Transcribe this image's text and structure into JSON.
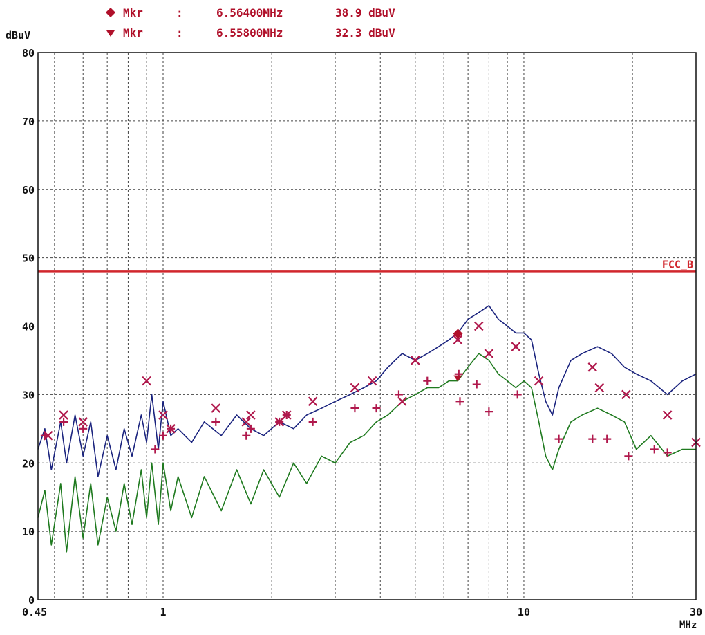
{
  "markers": [
    {
      "symbol": "diamond",
      "label": "Mkr",
      "sep": ":",
      "freq": "6.56400MHz",
      "level": "38.9 dBuV"
    },
    {
      "symbol": "triangle-down",
      "label": "Mkr",
      "sep": ":",
      "freq": "6.55800MHz",
      "level": "32.3 dBuV"
    }
  ],
  "colors": {
    "text": "#b0102a",
    "axis_text": "#111111",
    "grid": "#444444",
    "limit": "#d1262c",
    "peak": "#1a237e",
    "average": "#1f7a1f",
    "marker_x": "#b0184c",
    "marker_plus": "#b0184c"
  },
  "chart_data": {
    "type": "line",
    "xscale": "log",
    "xlim": [
      0.45,
      30
    ],
    "ylim": [
      0,
      80
    ],
    "ylabel": "dBuV",
    "xunit": "MHz",
    "x_tick_labels": [
      {
        "v": 0.45,
        "t": "0.45"
      },
      {
        "v": 1,
        "t": "1"
      },
      {
        "v": 10,
        "t": "10"
      },
      {
        "v": 30,
        "t": "30"
      }
    ],
    "y_tick_labels": [
      "0",
      "10",
      "20",
      "30",
      "40",
      "50",
      "60",
      "70",
      "80"
    ],
    "grid": true,
    "limit_line": {
      "name": "FCC_B",
      "value": 48
    },
    "series": [
      {
        "key": "peak",
        "points": [
          [
            0.45,
            22
          ],
          [
            0.47,
            25
          ],
          [
            0.49,
            19
          ],
          [
            0.52,
            26
          ],
          [
            0.54,
            20
          ],
          [
            0.57,
            27
          ],
          [
            0.6,
            21
          ],
          [
            0.63,
            26
          ],
          [
            0.66,
            18
          ],
          [
            0.7,
            24
          ],
          [
            0.74,
            19
          ],
          [
            0.78,
            25
          ],
          [
            0.82,
            21
          ],
          [
            0.87,
            27
          ],
          [
            0.9,
            23
          ],
          [
            0.93,
            30
          ],
          [
            0.97,
            22
          ],
          [
            1.0,
            29
          ],
          [
            1.05,
            24
          ],
          [
            1.1,
            25
          ],
          [
            1.2,
            23
          ],
          [
            1.3,
            26
          ],
          [
            1.45,
            24
          ],
          [
            1.6,
            27
          ],
          [
            1.75,
            25
          ],
          [
            1.9,
            24
          ],
          [
            2.1,
            26
          ],
          [
            2.3,
            25
          ],
          [
            2.5,
            27
          ],
          [
            2.75,
            28
          ],
          [
            3.0,
            29
          ],
          [
            3.3,
            30
          ],
          [
            3.6,
            31
          ],
          [
            3.9,
            32
          ],
          [
            4.2,
            34
          ],
          [
            4.6,
            36
          ],
          [
            5.0,
            35
          ],
          [
            5.4,
            36
          ],
          [
            5.8,
            37
          ],
          [
            6.2,
            38
          ],
          [
            6.56,
            39
          ],
          [
            7.0,
            41
          ],
          [
            7.5,
            42
          ],
          [
            8.0,
            43
          ],
          [
            8.5,
            41
          ],
          [
            9.0,
            40
          ],
          [
            9.5,
            39
          ],
          [
            10.0,
            39
          ],
          [
            10.5,
            38
          ],
          [
            11.0,
            33
          ],
          [
            11.5,
            29
          ],
          [
            12.0,
            27
          ],
          [
            12.5,
            31
          ],
          [
            13.5,
            35
          ],
          [
            14.5,
            36
          ],
          [
            16.0,
            37
          ],
          [
            17.5,
            36
          ],
          [
            19.0,
            34
          ],
          [
            20.5,
            33
          ],
          [
            22.5,
            32
          ],
          [
            25.0,
            30
          ],
          [
            27.5,
            32
          ],
          [
            30.0,
            33
          ]
        ]
      },
      {
        "key": "average",
        "points": [
          [
            0.45,
            12
          ],
          [
            0.47,
            16
          ],
          [
            0.49,
            8
          ],
          [
            0.52,
            17
          ],
          [
            0.54,
            7
          ],
          [
            0.57,
            18
          ],
          [
            0.6,
            9
          ],
          [
            0.63,
            17
          ],
          [
            0.66,
            8
          ],
          [
            0.7,
            15
          ],
          [
            0.74,
            10
          ],
          [
            0.78,
            17
          ],
          [
            0.82,
            11
          ],
          [
            0.87,
            19
          ],
          [
            0.9,
            12
          ],
          [
            0.93,
            20
          ],
          [
            0.97,
            11
          ],
          [
            1.0,
            20
          ],
          [
            1.05,
            13
          ],
          [
            1.1,
            18
          ],
          [
            1.2,
            12
          ],
          [
            1.3,
            18
          ],
          [
            1.45,
            13
          ],
          [
            1.6,
            19
          ],
          [
            1.75,
            14
          ],
          [
            1.9,
            19
          ],
          [
            2.1,
            15
          ],
          [
            2.3,
            20
          ],
          [
            2.5,
            17
          ],
          [
            2.75,
            21
          ],
          [
            3.0,
            20
          ],
          [
            3.3,
            23
          ],
          [
            3.6,
            24
          ],
          [
            3.9,
            26
          ],
          [
            4.2,
            27
          ],
          [
            4.6,
            29
          ],
          [
            5.0,
            30
          ],
          [
            5.4,
            31
          ],
          [
            5.8,
            31
          ],
          [
            6.2,
            32
          ],
          [
            6.56,
            32
          ],
          [
            7.0,
            34
          ],
          [
            7.5,
            36
          ],
          [
            8.0,
            35
          ],
          [
            8.5,
            33
          ],
          [
            9.0,
            32
          ],
          [
            9.5,
            31
          ],
          [
            10.0,
            32
          ],
          [
            10.5,
            31
          ],
          [
            11.0,
            26
          ],
          [
            11.5,
            21
          ],
          [
            12.0,
            19
          ],
          [
            12.5,
            22
          ],
          [
            13.5,
            26
          ],
          [
            14.5,
            27
          ],
          [
            16.0,
            28
          ],
          [
            17.5,
            27
          ],
          [
            19.0,
            26
          ],
          [
            20.5,
            22
          ],
          [
            22.5,
            24
          ],
          [
            25.0,
            21
          ],
          [
            27.5,
            22
          ],
          [
            30.0,
            22
          ]
        ]
      }
    ],
    "markers_x": [
      [
        0.48,
        24
      ],
      [
        0.53,
        27
      ],
      [
        0.6,
        26
      ],
      [
        0.9,
        32
      ],
      [
        1.0,
        27
      ],
      [
        1.05,
        25
      ],
      [
        1.4,
        28
      ],
      [
        1.7,
        26
      ],
      [
        1.75,
        27
      ],
      [
        2.1,
        26
      ],
      [
        2.2,
        27
      ],
      [
        2.6,
        29
      ],
      [
        3.4,
        31
      ],
      [
        3.8,
        32
      ],
      [
        4.6,
        29
      ],
      [
        5.0,
        35
      ],
      [
        6.56,
        38
      ],
      [
        7.5,
        40
      ],
      [
        8.0,
        36
      ],
      [
        9.5,
        37
      ],
      [
        11.0,
        32
      ],
      [
        15.5,
        34
      ],
      [
        16.2,
        31
      ],
      [
        19.2,
        30
      ],
      [
        25.0,
        27
      ],
      [
        30.0,
        23
      ]
    ],
    "markers_plus": [
      [
        0.47,
        24
      ],
      [
        0.53,
        26
      ],
      [
        0.6,
        25
      ],
      [
        0.95,
        22
      ],
      [
        1.0,
        24
      ],
      [
        1.05,
        25
      ],
      [
        1.4,
        26
      ],
      [
        1.7,
        24
      ],
      [
        1.75,
        25
      ],
      [
        2.1,
        26
      ],
      [
        2.2,
        27
      ],
      [
        2.6,
        26
      ],
      [
        3.4,
        28
      ],
      [
        3.9,
        28
      ],
      [
        4.5,
        30
      ],
      [
        5.4,
        32
      ],
      [
        6.6,
        33
      ],
      [
        6.65,
        29
      ],
      [
        7.4,
        31.5
      ],
      [
        8.0,
        27.5
      ],
      [
        9.6,
        30
      ],
      [
        12.5,
        23.5
      ],
      [
        15.5,
        23.5
      ],
      [
        17.0,
        23.5
      ],
      [
        19.5,
        21
      ],
      [
        23.0,
        22
      ],
      [
        25.0,
        21.5
      ]
    ],
    "peak_marker": {
      "freq": 6.564,
      "level": 38.9
    },
    "avg_marker": {
      "freq": 6.558,
      "level": 32.3
    }
  }
}
